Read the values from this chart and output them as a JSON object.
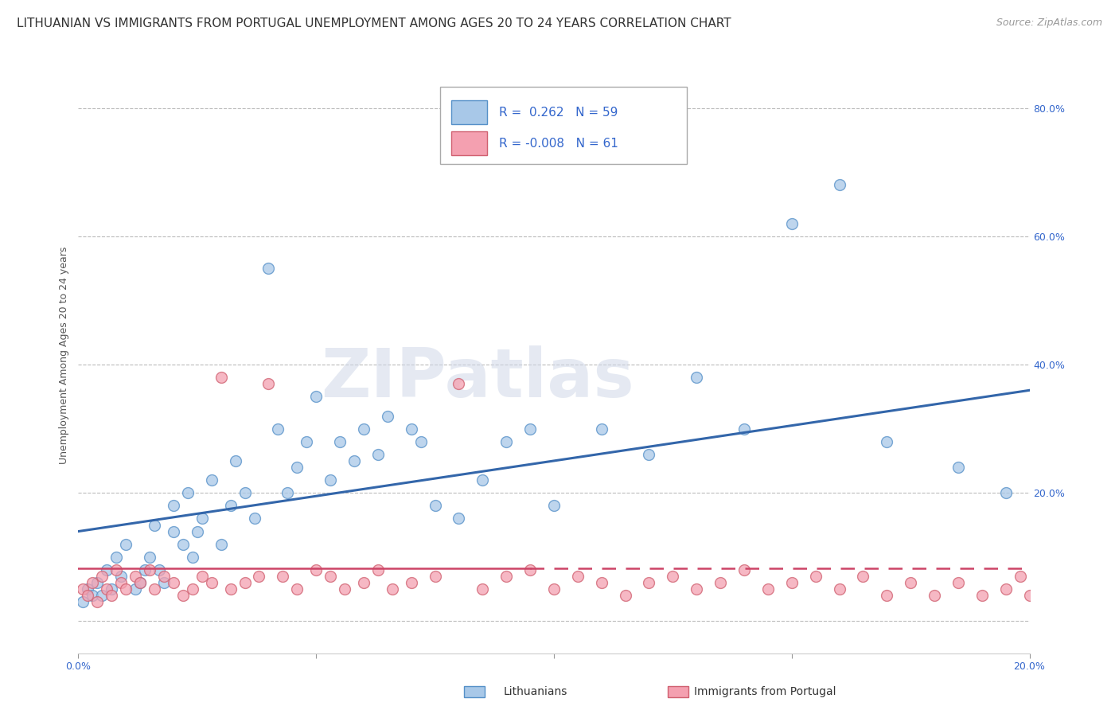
{
  "title": "LITHUANIAN VS IMMIGRANTS FROM PORTUGAL UNEMPLOYMENT AMONG AGES 20 TO 24 YEARS CORRELATION CHART",
  "source": "Source: ZipAtlas.com",
  "ylabel": "Unemployment Among Ages 20 to 24 years",
  "legend_label_1": "Lithuanians",
  "legend_label_2": "Immigrants from Portugal",
  "r1": 0.262,
  "n1": 59,
  "r2": -0.008,
  "n2": 61,
  "xmin": 0.0,
  "xmax": 0.2,
  "ymin": -0.05,
  "ymax": 0.88,
  "yticks": [
    0.0,
    0.2,
    0.4,
    0.6,
    0.8
  ],
  "ytick_labels": [
    "",
    "20.0%",
    "40.0%",
    "60.0%",
    "80.0%"
  ],
  "color_blue": "#a8c8e8",
  "color_blue_edge": "#5590c8",
  "color_blue_line": "#3366aa",
  "color_pink": "#f4a0b0",
  "color_pink_edge": "#d06070",
  "color_pink_line": "#cc4466",
  "background_color": "#ffffff",
  "grid_color": "#bbbbbb",
  "blue_x": [
    0.001,
    0.002,
    0.003,
    0.004,
    0.005,
    0.006,
    0.007,
    0.008,
    0.009,
    0.01,
    0.012,
    0.013,
    0.014,
    0.015,
    0.016,
    0.017,
    0.018,
    0.02,
    0.02,
    0.022,
    0.023,
    0.024,
    0.025,
    0.026,
    0.028,
    0.03,
    0.032,
    0.033,
    0.035,
    0.037,
    0.04,
    0.042,
    0.044,
    0.046,
    0.048,
    0.05,
    0.053,
    0.055,
    0.058,
    0.06,
    0.063,
    0.065,
    0.07,
    0.072,
    0.075,
    0.08,
    0.085,
    0.09,
    0.095,
    0.1,
    0.11,
    0.12,
    0.13,
    0.14,
    0.15,
    0.16,
    0.17,
    0.185,
    0.195
  ],
  "blue_y": [
    0.03,
    0.05,
    0.04,
    0.06,
    0.04,
    0.08,
    0.05,
    0.1,
    0.07,
    0.12,
    0.05,
    0.06,
    0.08,
    0.1,
    0.15,
    0.08,
    0.06,
    0.14,
    0.18,
    0.12,
    0.2,
    0.1,
    0.14,
    0.16,
    0.22,
    0.12,
    0.18,
    0.25,
    0.2,
    0.16,
    0.55,
    0.3,
    0.2,
    0.24,
    0.28,
    0.35,
    0.22,
    0.28,
    0.25,
    0.3,
    0.26,
    0.32,
    0.3,
    0.28,
    0.18,
    0.16,
    0.22,
    0.28,
    0.3,
    0.18,
    0.3,
    0.26,
    0.38,
    0.3,
    0.62,
    0.68,
    0.28,
    0.24,
    0.2
  ],
  "pink_x": [
    0.001,
    0.002,
    0.003,
    0.004,
    0.005,
    0.006,
    0.007,
    0.008,
    0.009,
    0.01,
    0.012,
    0.013,
    0.015,
    0.016,
    0.018,
    0.02,
    0.022,
    0.024,
    0.026,
    0.028,
    0.03,
    0.032,
    0.035,
    0.038,
    0.04,
    0.043,
    0.046,
    0.05,
    0.053,
    0.056,
    0.06,
    0.063,
    0.066,
    0.07,
    0.075,
    0.08,
    0.085,
    0.09,
    0.095,
    0.1,
    0.105,
    0.11,
    0.115,
    0.12,
    0.125,
    0.13,
    0.135,
    0.14,
    0.145,
    0.15,
    0.155,
    0.16,
    0.165,
    0.17,
    0.175,
    0.18,
    0.185,
    0.19,
    0.195,
    0.198,
    0.2
  ],
  "pink_y": [
    0.05,
    0.04,
    0.06,
    0.03,
    0.07,
    0.05,
    0.04,
    0.08,
    0.06,
    0.05,
    0.07,
    0.06,
    0.08,
    0.05,
    0.07,
    0.06,
    0.04,
    0.05,
    0.07,
    0.06,
    0.38,
    0.05,
    0.06,
    0.07,
    0.37,
    0.07,
    0.05,
    0.08,
    0.07,
    0.05,
    0.06,
    0.08,
    0.05,
    0.06,
    0.07,
    0.37,
    0.05,
    0.07,
    0.08,
    0.05,
    0.07,
    0.06,
    0.04,
    0.06,
    0.07,
    0.05,
    0.06,
    0.08,
    0.05,
    0.06,
    0.07,
    0.05,
    0.07,
    0.04,
    0.06,
    0.04,
    0.06,
    0.04,
    0.05,
    0.07,
    0.04
  ],
  "watermark": "ZIPatlas",
  "title_fontsize": 11,
  "source_fontsize": 9,
  "axis_fontsize": 9
}
